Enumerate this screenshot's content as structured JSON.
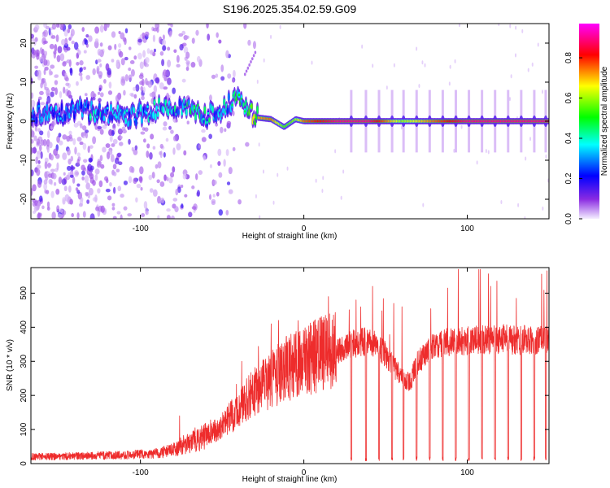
{
  "figure_title": "S196.2025.354.02.59.G09",
  "chart_data": [
    {
      "type": "heatmap",
      "xlabel": "Height of straight line (km)",
      "ylabel": "Frequency (Hz)",
      "xlim": [
        -167,
        150
      ],
      "ylim": [
        -25,
        25
      ],
      "x_ticks": [
        -100,
        0,
        100
      ],
      "x_tick_labels": [
        "-100",
        "0",
        "100"
      ],
      "y_ticks": [
        -20,
        -10,
        0,
        10,
        20
      ],
      "y_tick_labels": [
        "-20",
        "-10",
        "0",
        "10",
        "20"
      ],
      "colorbar": {
        "label": "Normalized spectral amplitude",
        "range": [
          0,
          0.97
        ],
        "ticks": [
          0.0,
          0.2,
          0.4,
          0.6,
          0.8
        ],
        "tick_labels": [
          "0.0",
          "0.2",
          "0.4",
          "0.6",
          "0.8"
        ],
        "colormap": [
          "#f4eeff",
          "#8a2be2",
          "#0000ff",
          "#00ffff",
          "#00ff00",
          "#ffff00",
          "#ff0000",
          "#ff00ff"
        ]
      },
      "ridge_points": [
        {
          "x": -160,
          "f": 2.0,
          "a": 0.3
        },
        {
          "x": -150,
          "f": 1.5,
          "a": 0.35
        },
        {
          "x": -140,
          "f": 3.0,
          "a": 0.3
        },
        {
          "x": -130,
          "f": 2.5,
          "a": 0.4
        },
        {
          "x": -120,
          "f": 2.0,
          "a": 0.35
        },
        {
          "x": -110,
          "f": 1.0,
          "a": 0.4
        },
        {
          "x": -100,
          "f": 2.0,
          "a": 0.35
        },
        {
          "x": -90,
          "f": 3.0,
          "a": 0.4
        },
        {
          "x": -80,
          "f": 4.0,
          "a": 0.4
        },
        {
          "x": -70,
          "f": 3.0,
          "a": 0.45
        },
        {
          "x": -60,
          "f": 1.5,
          "a": 0.4
        },
        {
          "x": -50,
          "f": 3.0,
          "a": 0.4
        },
        {
          "x": -40,
          "f": 6.5,
          "a": 0.5
        },
        {
          "x": -35,
          "f": 3.5,
          "a": 0.45
        },
        {
          "x": -30,
          "f": 1.0,
          "a": 0.7
        },
        {
          "x": -20,
          "f": 0.5,
          "a": 0.75
        },
        {
          "x": -12,
          "f": -1.5,
          "a": 0.55
        },
        {
          "x": -5,
          "f": 0.5,
          "a": 0.6
        },
        {
          "x": 0,
          "f": 0.0,
          "a": 0.75
        },
        {
          "x": 20,
          "f": 0.0,
          "a": 0.9
        },
        {
          "x": 40,
          "f": 0.0,
          "a": 0.9
        },
        {
          "x": 60,
          "f": 0.0,
          "a": 0.6
        },
        {
          "x": 80,
          "f": 0.0,
          "a": 0.75
        },
        {
          "x": 100,
          "f": 0.0,
          "a": 0.9
        },
        {
          "x": 120,
          "f": 0.0,
          "a": 0.9
        },
        {
          "x": 150,
          "f": 0.0,
          "a": 0.9
        }
      ]
    },
    {
      "type": "line",
      "xlabel": "Height of straight line (km)",
      "ylabel": "SNR (10 * v/v)",
      "xlim": [
        -167,
        150
      ],
      "ylim": [
        0,
        575
      ],
      "x_ticks": [
        -100,
        0,
        100
      ],
      "x_tick_labels": [
        "-100",
        "0",
        "100"
      ],
      "y_ticks": [
        0,
        100,
        200,
        300,
        400,
        500
      ],
      "y_tick_labels": [
        "0",
        "100",
        "200",
        "300",
        "400",
        "500"
      ],
      "color": "#ee2c2c",
      "envelope": [
        {
          "x": -167,
          "y": 20
        },
        {
          "x": -140,
          "y": 22
        },
        {
          "x": -110,
          "y": 25
        },
        {
          "x": -90,
          "y": 30
        },
        {
          "x": -80,
          "y": 40
        },
        {
          "x": -70,
          "y": 60
        },
        {
          "x": -60,
          "y": 80
        },
        {
          "x": -50,
          "y": 110
        },
        {
          "x": -40,
          "y": 160
        },
        {
          "x": -30,
          "y": 210
        },
        {
          "x": -20,
          "y": 250
        },
        {
          "x": -10,
          "y": 280
        },
        {
          "x": 0,
          "y": 300
        },
        {
          "x": 10,
          "y": 320
        },
        {
          "x": 20,
          "y": 330
        },
        {
          "x": 30,
          "y": 350
        },
        {
          "x": 40,
          "y": 360
        },
        {
          "x": 50,
          "y": 320
        },
        {
          "x": 60,
          "y": 250
        },
        {
          "x": 65,
          "y": 240
        },
        {
          "x": 70,
          "y": 300
        },
        {
          "x": 80,
          "y": 350
        },
        {
          "x": 90,
          "y": 360
        },
        {
          "x": 100,
          "y": 360
        },
        {
          "x": 120,
          "y": 365
        },
        {
          "x": 150,
          "y": 360
        }
      ],
      "dropout_x": [
        29,
        38,
        46,
        54,
        61,
        69,
        77,
        85,
        93,
        101,
        109,
        117,
        125,
        133,
        141,
        148
      ],
      "spike_peaks": [
        {
          "x": -76,
          "y": 140
        },
        {
          "x": -38,
          "y": 300
        },
        {
          "x": -20,
          "y": 410
        },
        {
          "x": 15,
          "y": 490
        },
        {
          "x": 32,
          "y": 480
        },
        {
          "x": 42,
          "y": 520
        },
        {
          "x": 55,
          "y": 470
        },
        {
          "x": 60,
          "y": 460
        },
        {
          "x": 88,
          "y": 515
        },
        {
          "x": 108,
          "y": 570
        },
        {
          "x": 130,
          "y": 485
        }
      ]
    }
  ]
}
